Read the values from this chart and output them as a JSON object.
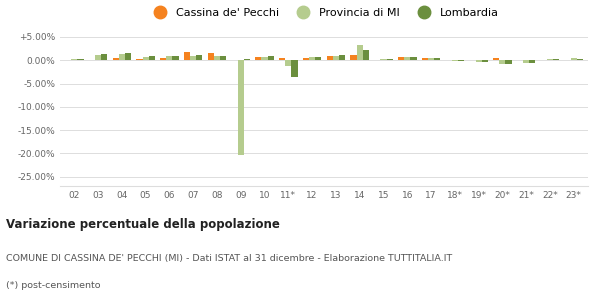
{
  "years": [
    "02",
    "03",
    "04",
    "05",
    "06",
    "07",
    "08",
    "09",
    "10",
    "11*",
    "12",
    "13",
    "14",
    "15",
    "16",
    "17",
    "18*",
    "19*",
    "20*",
    "21*",
    "22*",
    "23*"
  ],
  "cassina": [
    0.0,
    0.0,
    0.5,
    0.3,
    0.4,
    1.8,
    1.5,
    0.0,
    0.8,
    0.5,
    0.5,
    1.0,
    1.2,
    0.0,
    0.7,
    0.5,
    0.0,
    0.0,
    0.5,
    0.0,
    0.0,
    0.0
  ],
  "provincia": [
    0.3,
    1.1,
    1.4,
    0.8,
    0.9,
    1.0,
    1.0,
    -20.3,
    0.8,
    -1.2,
    0.8,
    1.0,
    3.2,
    0.3,
    0.8,
    0.5,
    -0.1,
    -0.3,
    -0.8,
    -0.5,
    0.2,
    0.4
  ],
  "lombardia": [
    0.3,
    1.3,
    1.6,
    0.9,
    1.0,
    1.1,
    1.0,
    0.3,
    1.0,
    -3.7,
    0.8,
    1.2,
    2.2,
    0.3,
    0.7,
    0.5,
    -0.1,
    -0.4,
    -0.8,
    -0.5,
    0.2,
    0.3
  ],
  "color_cassina": "#f5821f",
  "color_provincia": "#b5cc8e",
  "color_lombardia": "#6b8f3e",
  "title_bold": "Variazione percentuale della popolazione",
  "subtitle": "COMUNE DI CASSINA DE' PECCHI (MI) - Dati ISTAT al 31 dicembre - Elaborazione TUTTITALIA.IT",
  "footnote": "(*) post-censimento",
  "ylim": [
    -27,
    6.5
  ],
  "yticks": [
    5.0,
    0.0,
    -5.0,
    -10.0,
    -15.0,
    -20.0,
    -25.0
  ],
  "ytick_labels": [
    "+5.00%",
    "0.00%",
    "-5.00%",
    "-10.00%",
    "-15.00%",
    "-20.00%",
    "-25.00%"
  ],
  "bg_color": "#ffffff",
  "grid_color": "#dddddd",
  "text_color": "#666666"
}
